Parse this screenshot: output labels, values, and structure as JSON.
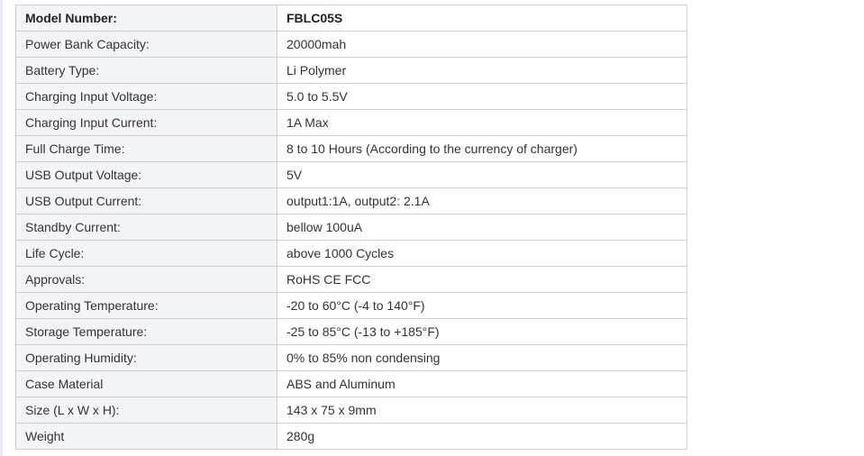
{
  "spec_table": {
    "rows": [
      {
        "label": "Model Number:",
        "value": "FBLC05S"
      },
      {
        "label": "Power Bank Capacity:",
        "value": "20000mah"
      },
      {
        "label": "Battery Type:",
        "value": "Li Polymer"
      },
      {
        "label": "Charging Input Voltage:",
        "value": "5.0 to 5.5V"
      },
      {
        "label": "Charging Input Current:",
        "value": "1A Max"
      },
      {
        "label": "Full Charge Time:",
        "value": "8 to 10 Hours (According to the currency of charger)"
      },
      {
        "label": "USB Output Voltage:",
        "value": "5V"
      },
      {
        "label": "USB Output Current:",
        "value": "output1:1A, output2: 2.1A"
      },
      {
        "label": "Standby Current:",
        "value": "bellow 100uA"
      },
      {
        "label": "Life Cycle:",
        "value": "above 1000 Cycles"
      },
      {
        "label": "Approvals:",
        "value": "RoHS CE FCC"
      },
      {
        "label": "Operating Temperature:",
        "value": "-20 to 60°C (-4 to 140°F)"
      },
      {
        "label": "Storage Temperature:",
        "value": "-25 to 85°C (-13 to +185°F)"
      },
      {
        "label": "Operating Humidity:",
        "value": "0% to 85% non condensing"
      },
      {
        "label": "Case Material",
        "value": "ABS and Aluminum"
      },
      {
        "label": "Size (L x W x H):",
        "value": "143 x 75 x 9mm"
      },
      {
        "label": "Weight",
        "value": "280g"
      }
    ]
  }
}
